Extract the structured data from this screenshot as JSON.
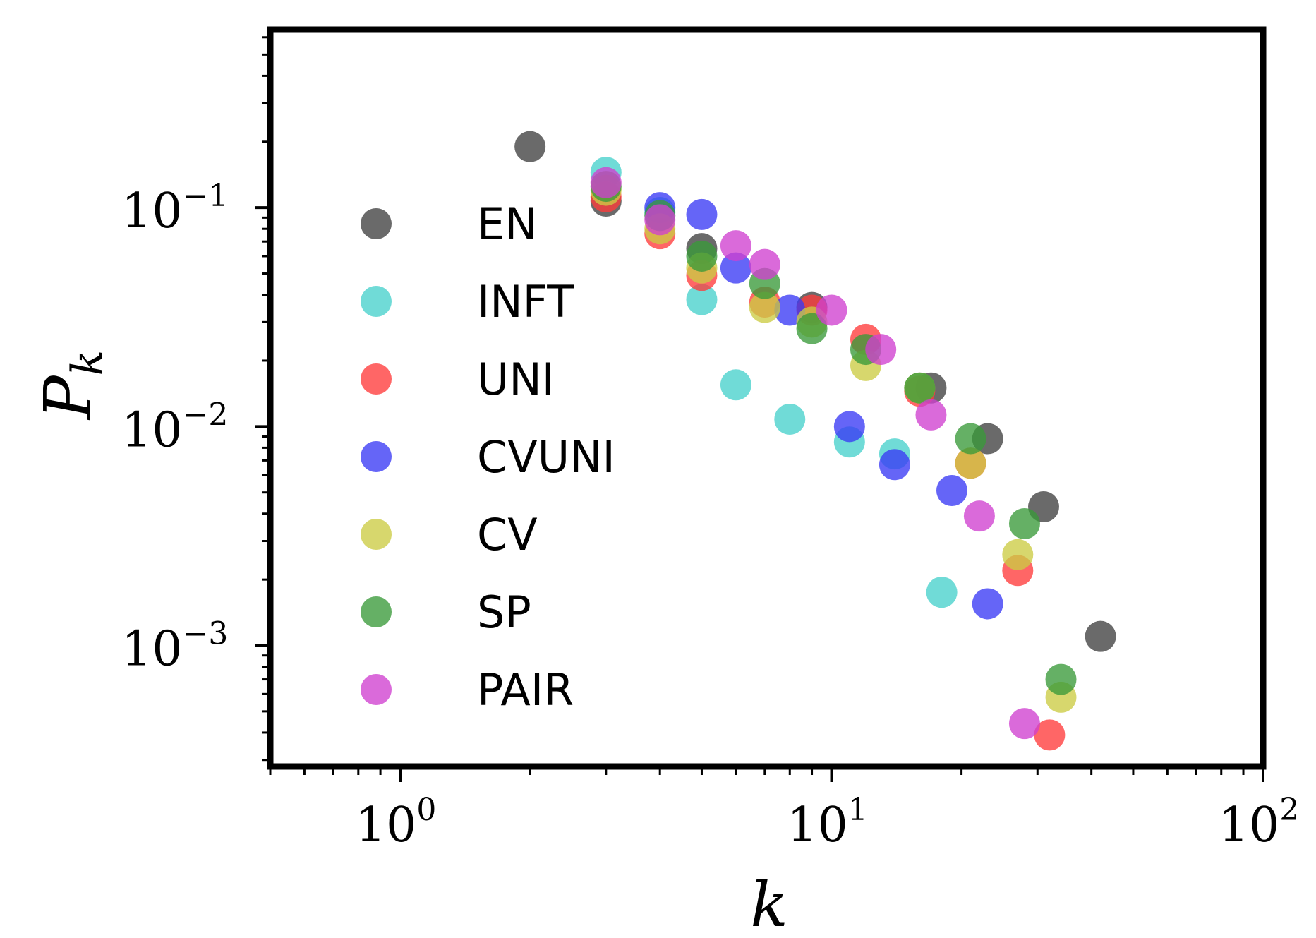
{
  "chart_data": {
    "type": "scatter",
    "title": "",
    "xlabel": "k",
    "ylabel": "P",
    "ylabel_subscript": "k",
    "xscale": "log",
    "yscale": "log",
    "xlim": [
      0.5,
      100
    ],
    "ylim": [
      0.00028,
      0.65
    ],
    "x_ticks": [
      {
        "value": 1,
        "base": "10",
        "exp": "0"
      },
      {
        "value": 10,
        "base": "10",
        "exp": "1"
      },
      {
        "value": 100,
        "base": "10",
        "exp": "2"
      }
    ],
    "y_ticks": [
      {
        "value": 0.1,
        "base": "10",
        "exp": "−1"
      },
      {
        "value": 0.01,
        "base": "10",
        "exp": "−2"
      },
      {
        "value": 0.001,
        "base": "10",
        "exp": "−3"
      }
    ],
    "legend_position": "upper-left",
    "series": [
      {
        "name": "EN",
        "color": "#404040",
        "points": [
          [
            2,
            0.19
          ],
          [
            3,
            0.107
          ],
          [
            5,
            0.065
          ],
          [
            9,
            0.035
          ],
          [
            17,
            0.015
          ],
          [
            23,
            0.0088
          ],
          [
            31,
            0.0043
          ],
          [
            42,
            0.0011
          ]
        ]
      },
      {
        "name": "INFT",
        "color": "#48d1cc",
        "points": [
          [
            3,
            0.145
          ],
          [
            4,
            0.095
          ],
          [
            5,
            0.038
          ],
          [
            6,
            0.0155
          ],
          [
            8,
            0.0108
          ],
          [
            11,
            0.0085
          ],
          [
            14,
            0.0075
          ],
          [
            18,
            0.00175
          ]
        ]
      },
      {
        "name": "UNI",
        "color": "#ff3b3b",
        "points": [
          [
            3,
            0.112
          ],
          [
            4,
            0.076
          ],
          [
            5,
            0.049
          ],
          [
            7,
            0.037
          ],
          [
            9,
            0.034
          ],
          [
            12,
            0.025
          ],
          [
            16,
            0.0145
          ],
          [
            21,
            0.0068
          ],
          [
            27,
            0.0022
          ],
          [
            32,
            0.00039
          ]
        ]
      },
      {
        "name": "CVUNI",
        "color": "#3a3af5",
        "points": [
          [
            4,
            0.1
          ],
          [
            5,
            0.093
          ],
          [
            6,
            0.053
          ],
          [
            8,
            0.034
          ],
          [
            11,
            0.01
          ],
          [
            14,
            0.0067
          ],
          [
            19,
            0.0051
          ],
          [
            23,
            0.00155
          ]
        ]
      },
      {
        "name": "CV",
        "color": "#cccc44",
        "points": [
          [
            3,
            0.12
          ],
          [
            4,
            0.08
          ],
          [
            5,
            0.053
          ],
          [
            7,
            0.035
          ],
          [
            9,
            0.03
          ],
          [
            12,
            0.019
          ],
          [
            16,
            0.015
          ],
          [
            21,
            0.0068
          ],
          [
            27,
            0.0026
          ],
          [
            34,
            0.00058
          ]
        ]
      },
      {
        "name": "SP",
        "color": "#3a9a3a",
        "points": [
          [
            3,
            0.125
          ],
          [
            4,
            0.092
          ],
          [
            5,
            0.06
          ],
          [
            7,
            0.045
          ],
          [
            9,
            0.028
          ],
          [
            12,
            0.0225
          ],
          [
            16,
            0.015
          ],
          [
            21,
            0.0088
          ],
          [
            28,
            0.0036
          ],
          [
            34,
            0.0007
          ]
        ]
      },
      {
        "name": "PAIR",
        "color": "#d040d0",
        "points": [
          [
            3,
            0.13
          ],
          [
            4,
            0.088
          ],
          [
            6,
            0.067
          ],
          [
            7,
            0.055
          ],
          [
            10,
            0.034
          ],
          [
            13,
            0.0225
          ],
          [
            17,
            0.0113
          ],
          [
            22,
            0.0039
          ],
          [
            28,
            0.00044
          ]
        ]
      }
    ]
  }
}
